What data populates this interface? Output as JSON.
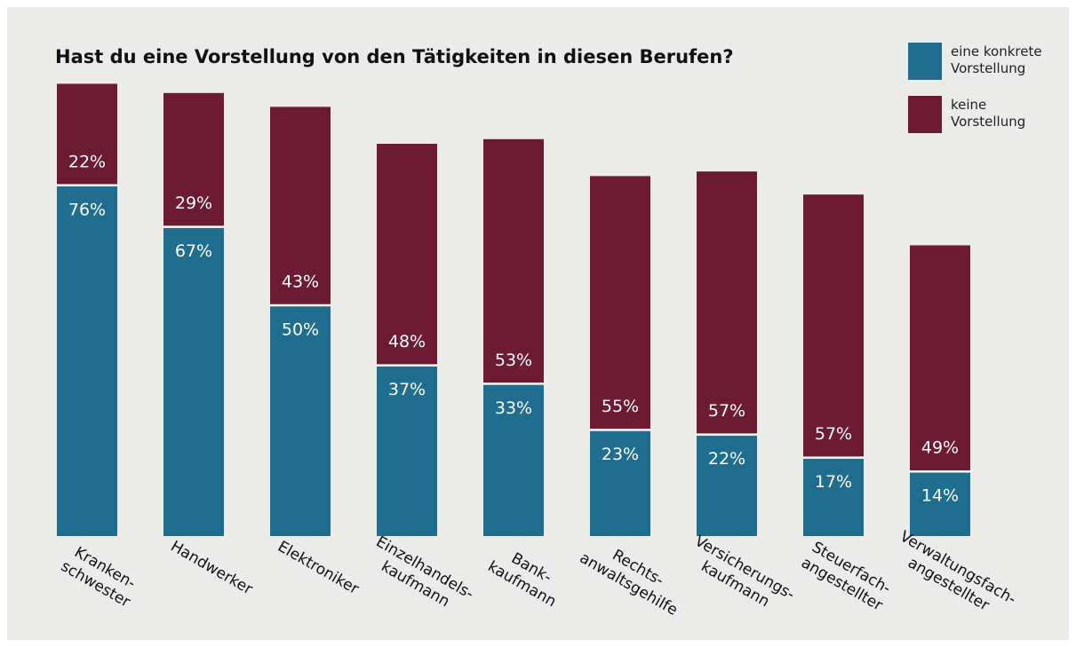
{
  "chart_data": {
    "type": "stacked_bar",
    "title": "Hast du eine Vorstellung von den Tätigkeiten in diesen Berufen?",
    "categories": [
      "Kranken-\nschwester",
      "Handwerker",
      "Elektroniker",
      "Einzelhandels-\nkaufmann",
      "Bank-\nkaufmann",
      "Rechts-\nanwaltsgehilfe",
      "Versicherungs-\nkaufmann",
      "Steuerfach-\nangestellter",
      "Verwaltungsfach-\nangestellter"
    ],
    "series": [
      {
        "name": "eine konkrete\nVorstellung",
        "color": "#1f6e8f",
        "values": [
          76,
          67,
          50,
          37,
          33,
          23,
          22,
          17,
          14
        ],
        "value_labels": [
          "76%",
          "67%",
          "50%",
          "37%",
          "33%",
          "23%",
          "22%",
          "17%",
          "14%"
        ]
      },
      {
        "name": "keine\nVorstellung",
        "color": "#6d1a33",
        "values": [
          22,
          29,
          43,
          48,
          53,
          55,
          57,
          57,
          49
        ],
        "value_labels": [
          "22%",
          "29%",
          "43%",
          "48%",
          "53%",
          "55%",
          "57%",
          "57%",
          "49%"
        ]
      }
    ]
  }
}
